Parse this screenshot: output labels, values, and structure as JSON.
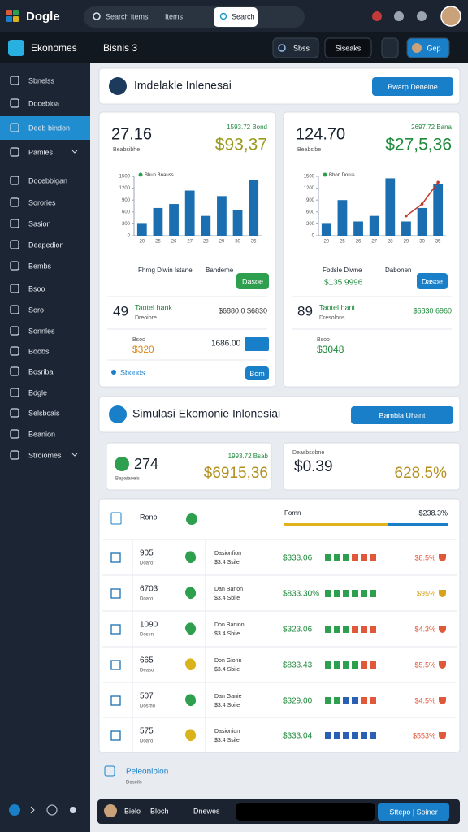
{
  "topbar": {
    "logo": "Dogle",
    "search_placeholder": "Search items",
    "search_scope": "Items",
    "search_button": "Search"
  },
  "appbar": {
    "app": "Ekonomes",
    "workspace": "Bisnis 3",
    "buttons": [
      "Sbss",
      "Siseaks",
      "Gep"
    ]
  },
  "sidebar": {
    "items": [
      "Sbnelss",
      "Docebioa",
      "Deeb bindon",
      "Pamles",
      "Docebbigan",
      "Sorories",
      "Sasion",
      "Deapedion",
      "Bembs",
      "Bsoo",
      "Soro",
      "Sonnles",
      "Boobs",
      "Bosriba",
      "Bdgle",
      "Selsbcais",
      "Beanion",
      "Stroiomes"
    ],
    "active": 2
  },
  "section1": {
    "title": "Imdelakle Inlenesai",
    "button": "Bwarp Deneine"
  },
  "panels": [
    {
      "value": "27.16",
      "caption": "Beabsibhe",
      "delta": "1593.72 Bond",
      "amount": "$93,37",
      "amount_color": "#9a9a1e",
      "columns": [
        "Fhrng Diwin Istane",
        "Bandeme"
      ],
      "action": "Dasoe",
      "action_color": "#2e9e4f",
      "row": {
        "count": "49",
        "name": "Taotel hank",
        "sub": "Dreoiore",
        "amount": "$6880.0 $6830"
      },
      "detail": {
        "label": "Bsoo",
        "amount": "$320",
        "figure": "1686.00"
      },
      "footer": {
        "label": "Sbonds",
        "button": "Bom"
      }
    },
    {
      "value": "124.70",
      "caption": "Beabsibe",
      "delta": "2697.72 Bana",
      "amount": "$27,5,36",
      "amount_color": "#1f8a3c",
      "columns": [
        "Fbdsle Diwne",
        "Dabonen"
      ],
      "highlight": "$135 9996",
      "action": "Dasoe",
      "action_color": "#1a7fc9",
      "row": {
        "count": "89",
        "name": "Taotel hant",
        "sub": "Dresolons",
        "amount": "$6830 6960"
      },
      "detail": {
        "label": "Bsoo",
        "amount": "$3048"
      }
    }
  ],
  "section2": {
    "title": "Simulasi Ekomonie Inlonesiai",
    "button": "Bambia Uhant"
  },
  "stats": [
    {
      "value": "274",
      "caption": "Bapaiaoeis",
      "delta": "1993.72 Bsab",
      "amount": "$6915,36"
    },
    {
      "caption": "Deasbsobne",
      "value": "$0.39",
      "amount": "628.5%"
    }
  ],
  "table": {
    "header": {
      "name": "Rono",
      "column": "Fomn",
      "total": "$238.3%"
    },
    "rows": [
      {
        "id": "905",
        "sub": "Doaro",
        "desc": [
          "Dasionfion",
          "$3.4 Ssile"
        ],
        "value": "$333.06",
        "blocks": [
          "#2e9e4f",
          "#2e9e4f",
          "#2e9e4f",
          "#e0583a",
          "#e0583a",
          "#e0583a"
        ],
        "change": "$8.5%",
        "change_color": "#e0583a",
        "icon_color": "#2e9e4f"
      },
      {
        "id": "6703",
        "sub": "Doaro",
        "desc": [
          "Dan Barion",
          "$3.4 Sbile"
        ],
        "value": "$833.30%",
        "blocks": [
          "#2e9e4f",
          "#2e9e4f",
          "#2e9e4f",
          "#2e9e4f",
          "#2e9e4f",
          "#2e9e4f"
        ],
        "change": "$95%",
        "change_color": "#d9a21c",
        "icon_color": "#2e9e4f"
      },
      {
        "id": "1090",
        "sub": "Dossn",
        "desc": [
          "Don Banion",
          "$3.4 Sbile"
        ],
        "value": "$323.06",
        "blocks": [
          "#2e9e4f",
          "#2e9e4f",
          "#2e9e4f",
          "#e0583a",
          "#e0583a",
          "#e0583a"
        ],
        "change": "$4.3%",
        "change_color": "#e0583a",
        "icon_color": "#2e9e4f"
      },
      {
        "id": "665",
        "sub": "Deaso",
        "desc": [
          "Don Gionn",
          "$3.4 Sbile"
        ],
        "value": "$833.43",
        "blocks": [
          "#2e9e4f",
          "#2e9e4f",
          "#2e9e4f",
          "#2e9e4f",
          "#e0583a",
          "#e0583a"
        ],
        "change": "$5.5%",
        "change_color": "#e0583a",
        "icon_color": "#d9b21c"
      },
      {
        "id": "507",
        "sub": "Dosmo",
        "desc": [
          "Dan Ganie",
          "$3.4 Soile"
        ],
        "value": "$329.00",
        "blocks": [
          "#2e9e4f",
          "#2e9e4f",
          "#2b5fb3",
          "#2b5fb3",
          "#e0583a",
          "#e0583a"
        ],
        "change": "$4.5%",
        "change_color": "#e0583a",
        "icon_color": "#2e9e4f"
      },
      {
        "id": "575",
        "sub": "Doaro",
        "desc": [
          "Dasionion",
          "$3.4 Ssile"
        ],
        "value": "$333.04",
        "blocks": [
          "#2b5fb3",
          "#2b5fb3",
          "#2b5fb3",
          "#2b5fb3",
          "#2b5fb3",
          "#2b5fb3"
        ],
        "change": "$553%",
        "change_color": "#e0583a",
        "icon_color": "#d9b21c"
      }
    ]
  },
  "footer": {
    "title": "Peleoniblon",
    "sub": "Doseils"
  },
  "bottombar": {
    "items": [
      "Bielo",
      "Bloch",
      "Dnewes"
    ],
    "button": "Sttepo | Soiner"
  },
  "chart_data": [
    {
      "type": "bar",
      "categories": [
        "20",
        "25",
        "26",
        "27",
        "28",
        "29",
        "30",
        "35"
      ],
      "series": [
        {
          "name": "Bhun Bnauss",
          "color": "#1b6fb0",
          "values": [
            300,
            700,
            800,
            1140,
            500,
            1000,
            640,
            1400
          ]
        }
      ],
      "ylim": [
        0,
        1500
      ],
      "yticks": [
        0,
        300,
        600,
        900,
        1200,
        1500
      ]
    },
    {
      "type": "bar",
      "categories": [
        "20",
        "25",
        "26",
        "27",
        "28",
        "29",
        "30",
        "35"
      ],
      "series": [
        {
          "name": "Bhon Dorus",
          "color": "#1b6fb0",
          "values": [
            300,
            900,
            360,
            500,
            1450,
            360,
            700,
            1300
          ]
        },
        {
          "kind": "line",
          "color": "#c0392b",
          "values": [
            null,
            null,
            null,
            null,
            null,
            500,
            800,
            1350
          ]
        }
      ],
      "ylim": [
        0,
        1500
      ],
      "yticks": [
        0,
        300,
        600,
        900,
        1200,
        1500
      ]
    }
  ]
}
